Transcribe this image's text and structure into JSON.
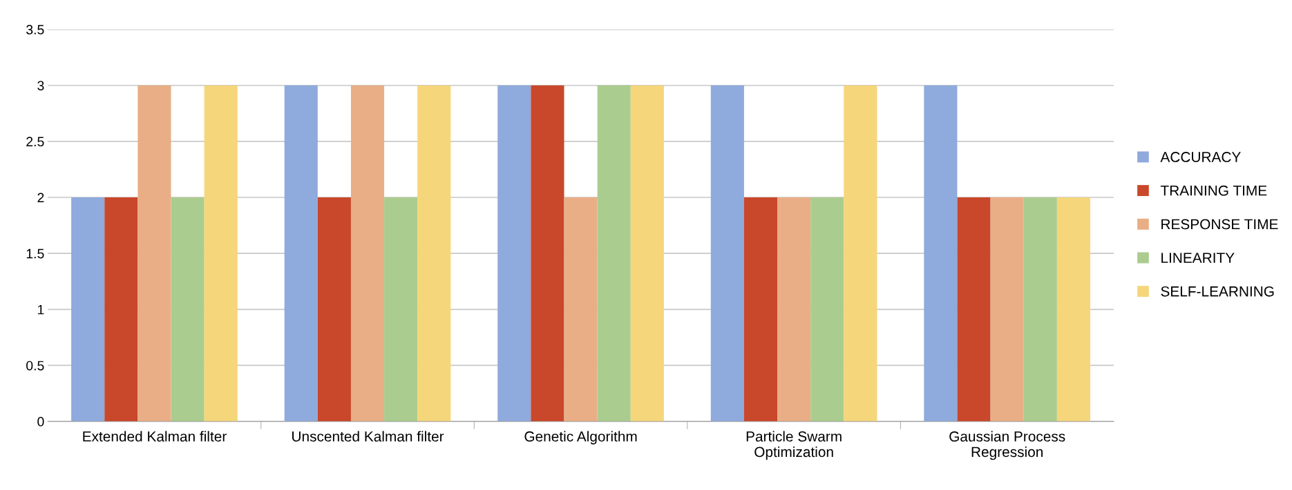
{
  "chart_data": {
    "type": "bar",
    "categories": [
      "Extended Kalman filter",
      "Unscented Kalman filter",
      "Genetic Algorithm",
      "Particle Swarm\nOptimization",
      "Gaussian Process\nRegression"
    ],
    "series": [
      {
        "name": "ACCURACY",
        "color": "#8faadc",
        "values": [
          2,
          3,
          3,
          3,
          3
        ]
      },
      {
        "name": "TRAINING TIME",
        "color": "#c9472a",
        "values": [
          2,
          2,
          3,
          2,
          2
        ]
      },
      {
        "name": "RESPONSE TIME",
        "color": "#e9ae86",
        "values": [
          3,
          3,
          2,
          2,
          2
        ]
      },
      {
        "name": "LINEARITY",
        "color": "#abcc8f",
        "values": [
          2,
          2,
          3,
          2,
          2
        ]
      },
      {
        "name": "SELF-LEARNING",
        "color": "#f5d67a",
        "values": [
          3,
          3,
          3,
          3,
          2
        ]
      }
    ],
    "ylim": [
      0,
      3.5
    ],
    "yticks": [
      0,
      0.5,
      1,
      1.5,
      2,
      2.5,
      3,
      3.5
    ],
    "grid": "y",
    "legend": "right"
  }
}
